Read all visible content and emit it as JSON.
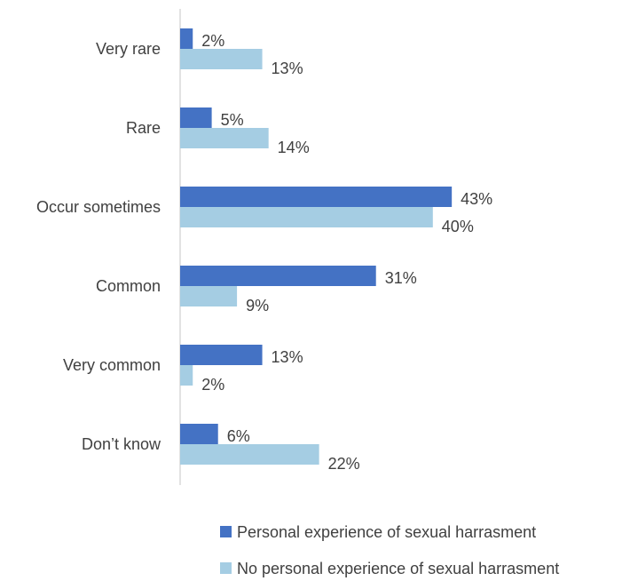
{
  "chart_data": {
    "type": "bar",
    "orientation": "horizontal",
    "categories": [
      "Very rare",
      "Rare",
      "Occur sometimes",
      "Common",
      "Very common",
      "Don’t know"
    ],
    "series": [
      {
        "name": "Personal experience of sexual harrasment",
        "values": [
          2,
          5,
          43,
          31,
          13,
          6
        ],
        "labels": [
          "2%",
          "5%",
          "43%",
          "31%",
          "13%",
          "6%"
        ],
        "color": "#4472C4"
      },
      {
        "name": "No personal experience of sexual harrasment",
        "values": [
          13,
          14,
          40,
          9,
          2,
          22
        ],
        "labels": [
          "13%",
          "14%",
          "40%",
          "9%",
          "2%",
          "22%"
        ],
        "color": "#A5CDE3"
      }
    ],
    "xlim": [
      0,
      50
    ],
    "grid": false,
    "legend_position": "bottom"
  }
}
